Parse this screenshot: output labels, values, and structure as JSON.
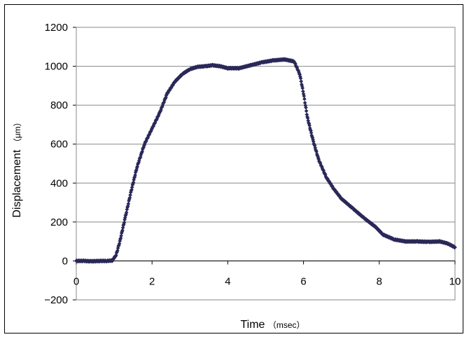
{
  "chart_data": {
    "type": "scatter",
    "xlabel": "Time",
    "xlabel_unit": "（msec）",
    "ylabel": "Displacement",
    "ylabel_unit": "（μm）",
    "xlim": [
      0,
      10
    ],
    "ylim": [
      -200,
      1200
    ],
    "xticks": [
      "0",
      "2",
      "4",
      "6",
      "8",
      "10"
    ],
    "yticks": [
      "-200",
      "0",
      "200",
      "400",
      "600",
      "800",
      "1000",
      "1200"
    ],
    "grid": "horizontal",
    "marker_color": "#2a2858",
    "series": [
      {
        "points": [
          [
            0,
            0
          ],
          [
            0.2,
            0
          ],
          [
            0.4,
            -2
          ],
          [
            0.6,
            0
          ],
          [
            0.8,
            0
          ],
          [
            0.95,
            2
          ],
          [
            1.05,
            30
          ],
          [
            1.15,
            100
          ],
          [
            1.3,
            230
          ],
          [
            1.45,
            360
          ],
          [
            1.6,
            480
          ],
          [
            1.8,
            600
          ],
          [
            2.0,
            680
          ],
          [
            2.2,
            760
          ],
          [
            2.4,
            860
          ],
          [
            2.6,
            920
          ],
          [
            2.8,
            960
          ],
          [
            3.0,
            985
          ],
          [
            3.2,
            997
          ],
          [
            3.4,
            1000
          ],
          [
            3.6,
            1005
          ],
          [
            3.8,
            1000
          ],
          [
            4.0,
            990
          ],
          [
            4.3,
            990
          ],
          [
            4.6,
            1005
          ],
          [
            4.9,
            1020
          ],
          [
            5.2,
            1030
          ],
          [
            5.5,
            1035
          ],
          [
            5.75,
            1025
          ],
          [
            5.9,
            960
          ],
          [
            6.0,
            860
          ],
          [
            6.1,
            740
          ],
          [
            6.25,
            620
          ],
          [
            6.4,
            520
          ],
          [
            6.6,
            430
          ],
          [
            6.8,
            370
          ],
          [
            7.0,
            320
          ],
          [
            7.3,
            270
          ],
          [
            7.6,
            220
          ],
          [
            7.9,
            175
          ],
          [
            8.1,
            135
          ],
          [
            8.4,
            110
          ],
          [
            8.7,
            100
          ],
          [
            9.0,
            100
          ],
          [
            9.3,
            98
          ],
          [
            9.6,
            100
          ],
          [
            9.8,
            90
          ],
          [
            10.0,
            70
          ]
        ]
      }
    ]
  }
}
